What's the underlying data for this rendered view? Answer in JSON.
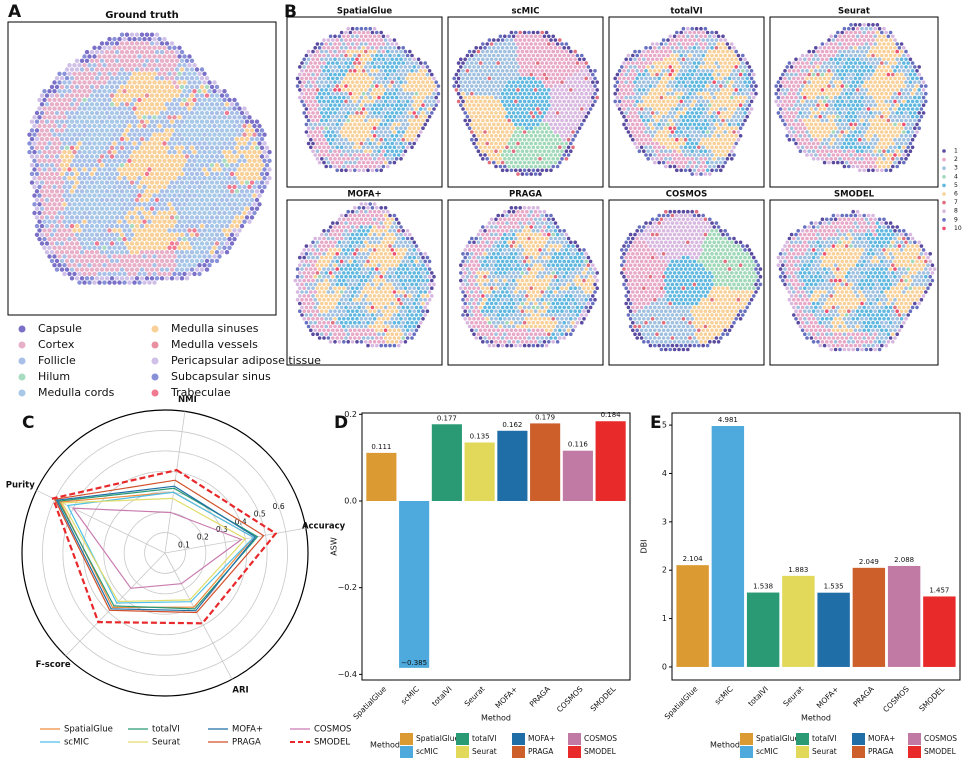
{
  "chart_data": [
    {
      "type": "spatial",
      "label": "A",
      "title": "Ground truth",
      "legend": [
        {
          "name": "Capsule",
          "color": "#7b70c8"
        },
        {
          "name": "Cortex",
          "color": "#e8b0c8"
        },
        {
          "name": "Follicle",
          "color": "#a8c0e8"
        },
        {
          "name": "Hilum",
          "color": "#a8dcc0"
        },
        {
          "name": "Medulla cords",
          "color": "#a8c8e8"
        },
        {
          "name": "Medulla sinuses",
          "color": "#f8d098"
        },
        {
          "name": "Medulla vessels",
          "color": "#e890a0"
        },
        {
          "name": "Pericapsular adipose tissue",
          "color": "#d0c0e8"
        },
        {
          "name": "Subcapsular sinus",
          "color": "#8890d8"
        },
        {
          "name": "Trabeculae",
          "color": "#f07890"
        }
      ]
    },
    {
      "type": "spatial-grid",
      "label": "B",
      "titles": [
        "SpatialGlue",
        "scMIC",
        "totalVI",
        "Seurat",
        "MOFA+",
        "PRAGA",
        "COSMOS",
        "SMODEL"
      ],
      "legend": [
        {
          "name": "1",
          "color": "#5a4aa0"
        },
        {
          "name": "2",
          "color": "#e8a8c8"
        },
        {
          "name": "3",
          "color": "#a0c0e0"
        },
        {
          "name": "4",
          "color": "#a0d8b8"
        },
        {
          "name": "5",
          "color": "#60b8e0"
        },
        {
          "name": "6",
          "color": "#f8d098"
        },
        {
          "name": "7",
          "color": "#e07080"
        },
        {
          "name": "8",
          "color": "#d8b8e0"
        },
        {
          "name": "9",
          "color": "#6870c0"
        },
        {
          "name": "10",
          "color": "#f05070"
        }
      ]
    },
    {
      "type": "radar",
      "label": "C",
      "axes": [
        "NMI",
        "Accuracy",
        "ARI",
        "F-score",
        "Purity"
      ],
      "rlim": [
        0,
        0.7
      ],
      "rticks": [
        0.1,
        0.2,
        0.3,
        0.4,
        0.5,
        0.6
      ],
      "series": [
        {
          "name": "SpatialGlue",
          "color": "#f08a3c",
          "values": [
            0.3,
            0.44,
            0.3,
            0.37,
            0.57
          ]
        },
        {
          "name": "scMIC",
          "color": "#4ec0e8",
          "values": [
            0.3,
            0.44,
            0.27,
            0.34,
            0.53
          ]
        },
        {
          "name": "totalVI",
          "color": "#2a9a74",
          "values": [
            0.32,
            0.46,
            0.31,
            0.36,
            0.58
          ]
        },
        {
          "name": "Seurat",
          "color": "#e2dc6a",
          "values": [
            0.27,
            0.4,
            0.26,
            0.33,
            0.56
          ]
        },
        {
          "name": "MOFA+",
          "color": "#1f6ea8",
          "values": [
            0.33,
            0.45,
            0.32,
            0.38,
            0.59
          ]
        },
        {
          "name": "PRAGA",
          "color": "#d0502a",
          "values": [
            0.36,
            0.49,
            0.33,
            0.39,
            0.6
          ]
        },
        {
          "name": "COSMOS",
          "color": "#c97ab0",
          "values": [
            0.2,
            0.38,
            0.17,
            0.24,
            0.5
          ]
        },
        {
          "name": "SMODEL",
          "color": "#e8282a",
          "style": "dashed",
          "values": [
            0.41,
            0.55,
            0.39,
            0.47,
            0.61
          ]
        }
      ]
    },
    {
      "type": "bar",
      "label": "D",
      "ylabel": "ASW",
      "xlabel": "Method",
      "legend_title": "Method",
      "categories": [
        "SpatialGlue",
        "scMIC",
        "totalVI",
        "Seurat",
        "MOFA+",
        "PRAGA",
        "COSMOS",
        "SMODEL"
      ],
      "colors": [
        "#dc9a32",
        "#4ea9dc",
        "#2a9a74",
        "#e2d95a",
        "#1f6ea8",
        "#cc5f2a",
        "#c07aa3",
        "#e82a2a"
      ],
      "values": [
        0.111,
        -0.385,
        0.177,
        0.135,
        0.162,
        0.179,
        0.116,
        0.184
      ],
      "value_labels": [
        "0.111",
        "−0.385",
        "0.177",
        "0.135",
        "0.162",
        "0.179",
        "0.116",
        "0.184"
      ],
      "ylim": [
        -0.413,
        0.203
      ],
      "yticks": [
        {
          "value": -0.4,
          "label": "−0.4"
        },
        {
          "value": -0.2,
          "label": "−0.2"
        },
        {
          "value": 0,
          "label": "0.0"
        },
        0.2
      ]
    },
    {
      "type": "bar",
      "label": "E",
      "ylabel": "DBI",
      "xlabel": "Method",
      "legend_title": "Method",
      "categories": [
        "SpatialGlue",
        "scMIC",
        "totalVI",
        "Seurat",
        "MOFA+",
        "PRAGA",
        "COSMOS",
        "SMODEL"
      ],
      "colors": [
        "#dc9a32",
        "#4ea9dc",
        "#2a9a74",
        "#e2d95a",
        "#1f6ea8",
        "#cc5f2a",
        "#c07aa3",
        "#e82a2a"
      ],
      "values": [
        2.104,
        4.981,
        1.538,
        1.883,
        1.535,
        2.049,
        2.088,
        1.457
      ],
      "ylim": [
        -0.27,
        5.25
      ],
      "yticks": [
        0,
        1,
        2,
        3,
        4,
        5
      ]
    }
  ]
}
